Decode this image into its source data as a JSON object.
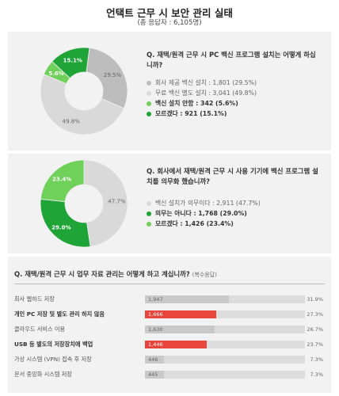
{
  "header": {
    "title": "언택트 근무 시 보안 관리 실태",
    "subtitle": "(총 응답자 : 6,105명)"
  },
  "chart_data": [
    {
      "type": "pie",
      "question": "Q. 재택/원격 근무 시 PC 백신 프로그램 설치는 어떻게 하십니까?",
      "slices": [
        {
          "label": "회사 제공 백신 설치 : 1,801 (29.5%)",
          "value": 29.5,
          "pct": "29.5%",
          "color": "#bdbdbd",
          "highlight": false
        },
        {
          "label": "무료 백신 별도 설치 : 3,041 (49.8%)",
          "value": 49.8,
          "pct": "49.8%",
          "color": "#d9d9d9",
          "highlight": false
        },
        {
          "label": "백신 설치 안함 : 342 (5.6%)",
          "value": 5.6,
          "pct": "5.6%",
          "color": "#6fd15a",
          "highlight": true
        },
        {
          "label": "모르겠다 : 921 (15.1%)",
          "value": 15.1,
          "pct": "15.1%",
          "color": "#1fa537",
          "highlight": true
        }
      ]
    },
    {
      "type": "pie",
      "question": "Q. 회사에서 재택/원격 근무 시 사용 기기에 백신 프로그램 설치를 의무화 했습니까?",
      "slices": [
        {
          "label": "백신 설치가 의무이다 : 2,911 (47.7%)",
          "value": 47.7,
          "pct": "47.7%",
          "color": "#d9d9d9",
          "highlight": false
        },
        {
          "label": "의무는 아니다 : 1,768 (29.0%)",
          "value": 29.0,
          "pct": "29.0%",
          "color": "#1fa537",
          "highlight": true
        },
        {
          "label": "모르겠다 : 1,426 (23.4%)",
          "value": 23.4,
          "pct": "23.4%",
          "color": "#6fd15a",
          "highlight": true
        }
      ]
    },
    {
      "type": "bar",
      "question": "Q. 재택/원격 근무 시 업무 자료 관리는 어떻게 하고 계십니까?",
      "note": "(복수응답)",
      "categories": [
        "회사 웹하드 저장",
        "개인 PC 저장 및 별도 관리 하지 않음",
        "클라우드 서비스 이용",
        "USB 등 별도의 저장장치에 백업",
        "가상 시스템 (VPN) 접속 후 저장",
        "문서 중앙화 시스템 저장"
      ],
      "values": [
        1947,
        1666,
        1630,
        1446,
        446,
        445
      ],
      "value_labels": [
        "1,947",
        "1,666",
        "1,630",
        "1,446",
        "446",
        "445"
      ],
      "percents": [
        31.9,
        27.3,
        26.7,
        23.7,
        7.3,
        7.3
      ],
      "percent_labels": [
        "31.9%",
        "27.3%",
        "26.7%",
        "23.7%",
        "7.3%",
        "7.3%"
      ],
      "highlight": [
        false,
        true,
        false,
        true,
        false,
        false
      ],
      "highlight_color": "#e8453c",
      "base_color": "#c9c9c9",
      "track_color": "#dcdcdc",
      "xlim": [
        0,
        6105
      ]
    }
  ]
}
